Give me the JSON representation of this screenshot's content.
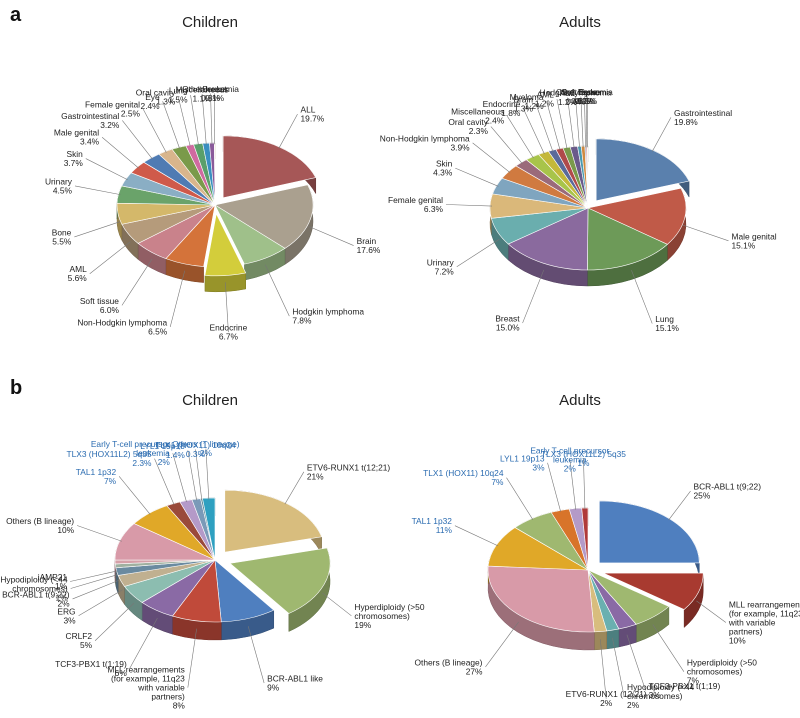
{
  "panels": [
    {
      "letter": "a"
    },
    {
      "letter": "b"
    }
  ],
  "chart_data": [
    {
      "type": "pie",
      "panel": "a",
      "title": "Children",
      "slices": [
        {
          "label": "ALL",
          "value": 19.7,
          "display": "19.7%",
          "color": "#a65757",
          "exploded": true
        },
        {
          "label": "Brain",
          "value": 17.6,
          "display": "17.6%",
          "color": "#aaa08f",
          "exploded": false
        },
        {
          "label": "Hodgkin lymphoma",
          "value": 7.8,
          "display": "7.8%",
          "color": "#9fc08a",
          "exploded": false
        },
        {
          "label": "Endocrine",
          "value": 6.7,
          "display": "6.7%",
          "color": "#d3cd3b",
          "exploded": true
        },
        {
          "label": "Non-Hodgkin lymphoma",
          "value": 6.5,
          "display": "6.5%",
          "color": "#d4733a",
          "exploded": false
        },
        {
          "label": "Soft tissue",
          "value": 6.0,
          "display": "6.0%",
          "color": "#c9828b",
          "exploded": false
        },
        {
          "label": "AML",
          "value": 5.6,
          "display": "5.6%",
          "color": "#b59b7b",
          "exploded": false
        },
        {
          "label": "Bone",
          "value": 5.5,
          "display": "5.5%",
          "color": "#d4b86a",
          "exploded": false
        },
        {
          "label": "Urinary",
          "value": 4.5,
          "display": "4.5%",
          "color": "#6aa36a",
          "exploded": false
        },
        {
          "label": "Skin",
          "value": 3.7,
          "display": "3.7%",
          "color": "#8aaec4",
          "exploded": false
        },
        {
          "label": "Male genital",
          "value": 3.4,
          "display": "3.4%",
          "color": "#cf5a4a",
          "exploded": false
        },
        {
          "label": "Gastrointestinal",
          "value": 3.2,
          "display": "3.2%",
          "color": "#4f7bb3",
          "exploded": false
        },
        {
          "label": "Female genital",
          "value": 2.5,
          "display": "2.5%",
          "color": "#d8b58c",
          "exploded": false
        },
        {
          "label": "Eye",
          "value": 2.4,
          "display": "2.4%",
          "color": "#7a9a4a",
          "exploded": false
        },
        {
          "label": "Oral cavity",
          "value": 1.3,
          "display": "1.3%",
          "color": "#d06aa0",
          "exploded": false
        },
        {
          "label": "Lung",
          "value": 1.5,
          "display": "1.5%",
          "color": "#5a9f6a",
          "exploded": false
        },
        {
          "label": "Miscellaneous",
          "value": 1.1,
          "display": "1.1%",
          "color": "#3a8fc0",
          "exploded": false
        },
        {
          "label": "Other leukemia",
          "value": 0.8,
          "display": "0.8%",
          "color": "#8a5a9a",
          "exploded": false
        },
        {
          "label": "Breast",
          "value": 0.1,
          "display": "0.1%",
          "color": "#e0a030",
          "exploded": false
        }
      ]
    },
    {
      "type": "pie",
      "panel": "a",
      "title": "Adults",
      "slices": [
        {
          "label": "Gastrointestinal",
          "value": 19.8,
          "display": "19.8%",
          "color": "#5a80ad",
          "exploded": true
        },
        {
          "label": "Male genital",
          "value": 15.1,
          "display": "15.1%",
          "color": "#c05a48",
          "exploded": false
        },
        {
          "label": "Lung",
          "value": 15.1,
          "display": "15.1%",
          "color": "#6d9a58",
          "exploded": false
        },
        {
          "label": "Breast",
          "value": 15.0,
          "display": "15.0%",
          "color": "#8a6a9e",
          "exploded": false
        },
        {
          "label": "Urinary",
          "value": 7.2,
          "display": "7.2%",
          "color": "#6aaeae",
          "exploded": false
        },
        {
          "label": "Female genital",
          "value": 6.3,
          "display": "6.3%",
          "color": "#dab87a",
          "exploded": false
        },
        {
          "label": "Skin",
          "value": 4.3,
          "display": "4.3%",
          "color": "#7fa5bf",
          "exploded": false
        },
        {
          "label": "Non-Hodgkin lymphoma",
          "value": 3.9,
          "display": "3.9%",
          "color": "#d07a40",
          "exploded": false
        },
        {
          "label": "Oral cavity",
          "value": 2.3,
          "display": "2.3%",
          "color": "#9a6a7a",
          "exploded": false
        },
        {
          "label": "Miscellaneous",
          "value": 2.4,
          "display": "2.4%",
          "color": "#a8c44a",
          "exploded": false
        },
        {
          "label": "Endocrine",
          "value": 1.8,
          "display": "1.8%",
          "color": "#c4b83a",
          "exploded": false
        },
        {
          "label": "Brain",
          "value": 1.3,
          "display": "1.3%",
          "color": "#5a6a9a",
          "exploded": false
        },
        {
          "label": "Myeloma",
          "value": 1.2,
          "display": "1.2%",
          "color": "#b04a4a",
          "exploded": false
        },
        {
          "label": "AML",
          "value": 1.2,
          "display": "1.2%",
          "color": "#7a9a4a",
          "exploded": false
        },
        {
          "label": "ALL",
          "value": 1.2,
          "display": "1.2%",
          "color": "#6a5a8a",
          "exploded": false
        },
        {
          "label": "Hodgkin lymphoma",
          "value": 0.6,
          "display": "0.6%",
          "color": "#4a9ab0",
          "exploded": false
        },
        {
          "label": "Soft tissue",
          "value": 0.6,
          "display": "0.6%",
          "color": "#d08a40",
          "exploded": false
        },
        {
          "label": "Other leukemia",
          "value": 0.2,
          "display": "0.2%",
          "color": "#8aa0c0",
          "exploded": false
        },
        {
          "label": "Eye",
          "value": 0.2,
          "display": "0.2%",
          "color": "#c06a6a",
          "exploded": false
        },
        {
          "label": "Bone",
          "value": 0.1,
          "display": "0.1%",
          "color": "#a0b070",
          "exploded": false
        }
      ]
    },
    {
      "type": "pie",
      "panel": "b",
      "title": "Children",
      "slices": [
        {
          "label": "ETV6-RUNX1 t(12;21)",
          "value": 21,
          "display": "21%",
          "color": "#d8bd7e",
          "exploded": true
        },
        {
          "label": "Hyperdiploidy (>50 chromosomes)",
          "value": 19,
          "display": "19%",
          "color": "#9fb870",
          "exploded": true
        },
        {
          "label": "BCR-ABL1 like",
          "value": 9,
          "display": "9%",
          "color": "#4f7fbf",
          "exploded": false
        },
        {
          "label": "MLL rearrangements (for example, 11q23 with variable partners)",
          "value": 8,
          "display": "8%",
          "color": "#c04a3a",
          "exploded": false
        },
        {
          "label": "TCF3-PBX1 t(1;19)",
          "value": 6,
          "display": "6%",
          "color": "#8a6aa5",
          "exploded": false
        },
        {
          "label": "CRLF2",
          "value": 5,
          "display": "5%",
          "color": "#8cbdb0",
          "exploded": false
        },
        {
          "label": "ERG",
          "value": 3,
          "display": "3%",
          "color": "#c0b090",
          "exploded": false
        },
        {
          "label": "BCR-ABL1 t(9;22)",
          "value": 2,
          "display": "2%",
          "color": "#6a8aa0",
          "exploded": false
        },
        {
          "label": "Hypodiploidy (<44 chromosomes)",
          "value": 1,
          "display": "1%",
          "color": "#a0b0a0",
          "exploded": false
        },
        {
          "label": "iAMP21",
          "value": 1,
          "display": "1%",
          "color": "#d5a0a8",
          "exploded": false
        },
        {
          "label": "Others (B lineage)",
          "value": 10,
          "display": "10%",
          "color": "#d89aa8",
          "exploded": false
        },
        {
          "label": "TAL1 1p32",
          "value": 7,
          "display": "7%",
          "color": "#e0a828",
          "exploded": false
        },
        {
          "label": "TLX3 (HOX11L2) 5q35",
          "value": 2.3,
          "display": "2.3%",
          "color": "#9a4a3a",
          "exploded": false
        },
        {
          "label": "Early T-cell precursor leukemia",
          "value": 2,
          "display": "2%",
          "color": "#b49ac8",
          "exploded": false
        },
        {
          "label": "LYL1 19p13",
          "value": 1.4,
          "display": "1.4%",
          "color": "#7a9ab8",
          "exploded": false
        },
        {
          "label": "TLX1 (HOX11) 10q24",
          "value": 0.3,
          "display": "0.3%",
          "color": "#5a8a9a",
          "exploded": false
        },
        {
          "label": "Others (T lineage)",
          "value": 2,
          "display": "2%",
          "color": "#2ea0c0",
          "exploded": false
        }
      ]
    },
    {
      "type": "pie",
      "panel": "b",
      "title": "Adults",
      "slices": [
        {
          "label": "BCR-ABL1 t(9;22)",
          "value": 25,
          "display": "25%",
          "color": "#4f7fbf",
          "exploded": true
        },
        {
          "label": "MLL rearrangements (for example, 11q23 with variable partners)",
          "value": 10,
          "display": "10%",
          "color": "#a83a30",
          "exploded": true
        },
        {
          "label": "Hyperdiploidy (>50 chromosomes)",
          "value": 7,
          "display": "7%",
          "color": "#9fb870",
          "exploded": false
        },
        {
          "label": "TCF3-PBX1 t(1;19)",
          "value": 3,
          "display": "3%",
          "color": "#8a6aa5",
          "exploded": false
        },
        {
          "label": "Hypodiploidy (<44 chromosomes)",
          "value": 2,
          "display": "2%",
          "color": "#6ab0b0",
          "exploded": false
        },
        {
          "label": "ETV6-RUNX1 (12;21)",
          "value": 2,
          "display": "2%",
          "color": "#d8bd7e",
          "exploded": false
        },
        {
          "label": "Others (B lineage)",
          "value": 27,
          "display": "27%",
          "color": "#d89aa8",
          "exploded": false
        },
        {
          "label": "TAL1 1p32",
          "value": 11,
          "display": "11%",
          "color": "#e0a828",
          "exploded": false
        },
        {
          "label": "TLX1 (HOX11) 10q24",
          "value": 7,
          "display": "7%",
          "color": "#9fb870",
          "exploded": false
        },
        {
          "label": "LYL1 19p13",
          "value": 3,
          "display": "3%",
          "color": "#d8742a",
          "exploded": false
        },
        {
          "label": "Early T-cell precursor leukemia",
          "value": 2,
          "display": "2%",
          "color": "#b49ac8",
          "exploded": false
        },
        {
          "label": "TLX3 (HOX11L2) 5q35",
          "value": 1,
          "display": "1%",
          "color": "#b03a3a",
          "exploded": false
        }
      ]
    }
  ]
}
